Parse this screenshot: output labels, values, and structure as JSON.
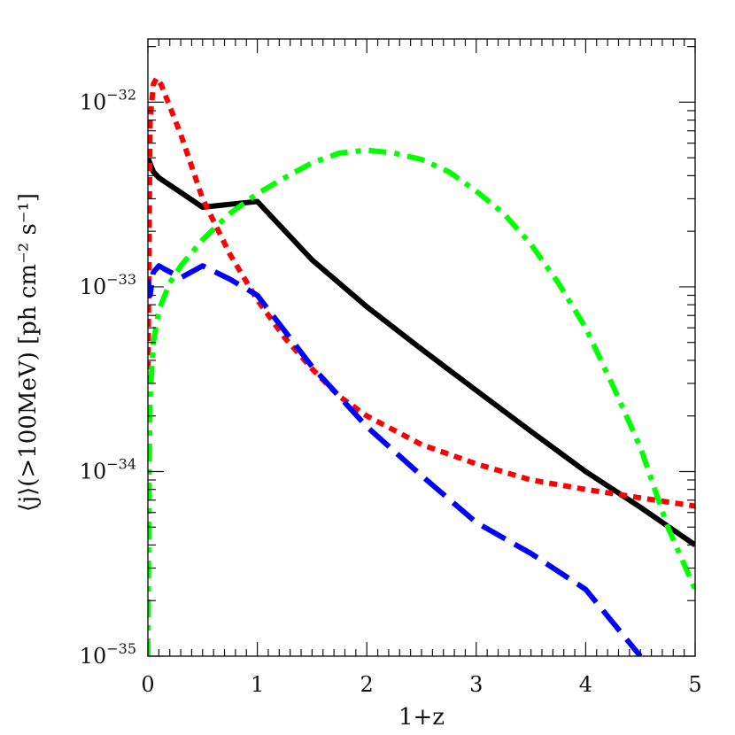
{
  "chart_data": {
    "type": "line",
    "xlabel": "1+z",
    "ylabel": "⟨j⟩(>100MeV) [ph cm⁻² s⁻¹]",
    "xlim": [
      0,
      5
    ],
    "ylim": [
      1e-35,
      2.2e-32
    ],
    "yscale": "log",
    "grid": false,
    "legend": "none",
    "x_ticks": [
      "0",
      "1",
      "2",
      "3",
      "4",
      "5"
    ],
    "y_ticks": [
      {
        "value": 1e-32,
        "base": "10",
        "exp": "−32"
      },
      {
        "value": 1e-33,
        "base": "10",
        "exp": "−33"
      },
      {
        "value": 1e-34,
        "base": "10",
        "exp": "−34"
      },
      {
        "value": 1e-35,
        "base": "10",
        "exp": "−35"
      }
    ],
    "series": [
      {
        "color": "#000000",
        "style": "solid",
        "x": [
          0,
          0.05,
          0.1,
          0.25,
          0.5,
          0.75,
          1.0,
          1.5,
          2.0,
          2.5,
          3.0,
          3.5,
          4.0,
          4.5,
          5.0
        ],
        "y": [
          5e-33,
          4.2e-33,
          3.9e-33,
          3.4e-33,
          2.7e-33,
          2.8e-33,
          2.9e-33,
          1.4e-33,
          7.8e-34,
          4.6e-34,
          2.75e-34,
          1.65e-34,
          1e-34,
          6.4e-35,
          4e-35
        ]
      },
      {
        "color": "#ff0000",
        "style": "dotted",
        "x": [
          0,
          0.02,
          0.05,
          0.08,
          0.12,
          0.2,
          0.3,
          0.5,
          0.75,
          1.0,
          1.25,
          1.5,
          1.75,
          2.0,
          2.5,
          3.0,
          3.5,
          4.0,
          4.5,
          5.0
        ],
        "y": [
          3e-34,
          8e-33,
          1.25e-32,
          1.35e-32,
          1.25e-32,
          9.5e-33,
          6.7e-33,
          3e-33,
          1.5e-33,
          8.5e-34,
          5.3e-34,
          3.6e-34,
          2.55e-34,
          2e-34,
          1.4e-34,
          1.1e-34,
          9e-35,
          8e-35,
          7.2e-35,
          6.5e-35
        ]
      },
      {
        "color": "#0000ff",
        "style": "dashed",
        "x": [
          0,
          0.02,
          0.05,
          0.1,
          0.15,
          0.3,
          0.5,
          0.75,
          1.0,
          1.5,
          2.0,
          2.5,
          3.0,
          3.5,
          4.0,
          4.5
        ],
        "y": [
          1.1e-33,
          9e-34,
          1.2e-33,
          1.3e-33,
          1.25e-33,
          1.12e-33,
          1.3e-33,
          1.1e-33,
          9e-34,
          3.7e-34,
          1.75e-34,
          9.5e-35,
          5.3e-35,
          3.6e-35,
          2.3e-35,
          1e-35
        ]
      },
      {
        "color": "#00ff00",
        "style": "dashdot",
        "x": [
          0,
          0.01,
          0.02,
          0.05,
          0.1,
          0.2,
          0.3,
          0.5,
          0.75,
          1.0,
          1.25,
          1.5,
          1.75,
          2.0,
          2.25,
          2.5,
          2.75,
          3.0,
          3.25,
          3.5,
          3.75,
          4.0,
          4.25,
          4.5,
          4.75,
          5.0
        ],
        "y": [
          1e-35,
          8e-35,
          2.5e-34,
          5e-34,
          7.5e-34,
          1.05e-33,
          1.3e-33,
          1.8e-33,
          2.5e-33,
          3.2e-33,
          3.9e-33,
          4.7e-33,
          5.3e-33,
          5.5e-33,
          5.3e-33,
          4.9e-33,
          4.2e-33,
          3.3e-33,
          2.5e-33,
          1.7e-33,
          1.05e-33,
          6e-34,
          2.9e-34,
          1.35e-34,
          5e-35,
          2.3e-35
        ]
      }
    ]
  }
}
